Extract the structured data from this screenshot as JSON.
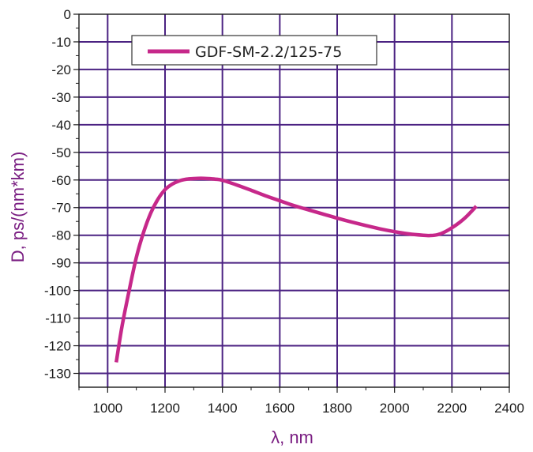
{
  "chart_data": {
    "type": "line",
    "title": "",
    "xlabel": "λ, nm",
    "ylabel": "D, ps/(nm*km)",
    "xlim": [
      900,
      2400
    ],
    "ylim": [
      -135,
      0
    ],
    "xticks": [
      1000,
      1200,
      1400,
      1600,
      1800,
      2000,
      2200,
      2400
    ],
    "yticks": [
      0,
      -10,
      -20,
      -30,
      -40,
      -50,
      -60,
      -70,
      -80,
      -90,
      -100,
      -110,
      -120,
      -130
    ],
    "grid": true,
    "legend_position": "top-center",
    "series": [
      {
        "name": "GDF-SM-2.2/125-75",
        "color": "#c6288a",
        "x": [
          1030,
          1050,
          1075,
          1100,
          1125,
          1150,
          1175,
          1200,
          1225,
          1250,
          1275,
          1300,
          1325,
          1350,
          1375,
          1400,
          1450,
          1500,
          1550,
          1600,
          1650,
          1700,
          1750,
          1800,
          1850,
          1900,
          1950,
          2000,
          2050,
          2100,
          2125,
          2150,
          2175,
          2200,
          2225,
          2250,
          2285
        ],
        "y": [
          -126,
          -113,
          -100,
          -88,
          -79,
          -72,
          -67,
          -63.5,
          -61.5,
          -60.3,
          -59.7,
          -59.5,
          -59.4,
          -59.5,
          -59.7,
          -60.1,
          -61.8,
          -63.7,
          -65.7,
          -67.5,
          -69.3,
          -70.8,
          -72.3,
          -73.8,
          -75.2,
          -76.5,
          -77.7,
          -78.7,
          -79.5,
          -80,
          -80.1,
          -79.8,
          -78.8,
          -77.3,
          -75.5,
          -73.3,
          -69.5
        ]
      }
    ]
  },
  "colors": {
    "grid": "#4b2282",
    "axis": "#1a1a1a",
    "label": "#7a1e82",
    "line": "#c6288a"
  }
}
